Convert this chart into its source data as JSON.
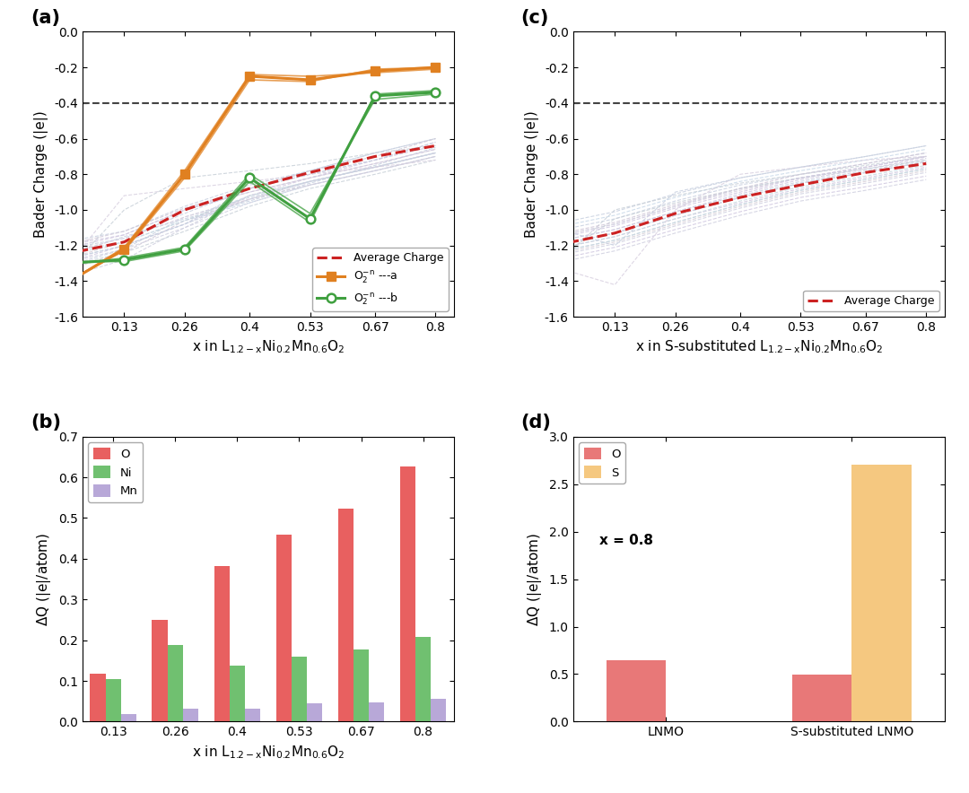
{
  "x_ticks": [
    0.13,
    0.26,
    0.4,
    0.53,
    0.67,
    0.8
  ],
  "x_full": [
    0.0,
    0.13,
    0.26,
    0.4,
    0.53,
    0.67,
    0.8
  ],
  "panel_a": {
    "avg_charge": [
      -1.25,
      -1.18,
      -1.0,
      -0.88,
      -0.79,
      -0.7,
      -0.64
    ],
    "o2n_a": [
      -1.42,
      -1.22,
      -0.8,
      -0.25,
      -0.27,
      -0.22,
      -0.2
    ],
    "o2n_b": [
      -1.3,
      -1.28,
      -1.22,
      -0.82,
      -1.05,
      -0.36,
      -0.34
    ],
    "o2n_a_extra": [
      [
        -1.42,
        -1.21,
        -0.78,
        -0.24,
        -0.25,
        -0.23,
        -0.21
      ],
      [
        -1.41,
        -1.23,
        -0.82,
        -0.27,
        -0.28,
        -0.21,
        -0.2
      ]
    ],
    "o2n_b_extra": [
      [
        -1.31,
        -1.27,
        -1.21,
        -0.8,
        -1.02,
        -0.38,
        -0.35
      ],
      [
        -1.29,
        -1.29,
        -1.23,
        -0.84,
        -1.07,
        -0.35,
        -0.33
      ]
    ],
    "bg_lines": [
      {
        "y": [
          -1.26,
          -1.15,
          -1.05,
          -0.95,
          -0.85,
          -0.75,
          -0.65
        ],
        "color": "#C8D0E0"
      },
      {
        "y": [
          -1.3,
          -1.2,
          -1.08,
          -0.92,
          -0.82,
          -0.72,
          -0.62
        ],
        "color": "#D0C8E0"
      },
      {
        "y": [
          -1.22,
          -1.16,
          -1.02,
          -0.88,
          -0.78,
          -0.68,
          -0.6
        ],
        "color": "#C8D0E0"
      },
      {
        "y": [
          -1.28,
          -1.18,
          -1.0,
          -0.9,
          -0.82,
          -0.74,
          -0.66
        ],
        "color": "#D8D0D8"
      },
      {
        "y": [
          -1.32,
          -1.22,
          -1.04,
          -0.93,
          -0.84,
          -0.76,
          -0.68
        ],
        "color": "#C8D0E0"
      },
      {
        "y": [
          -1.2,
          -1.14,
          -1.0,
          -0.88,
          -0.8,
          -0.72,
          -0.64
        ],
        "color": "#D0C8E0"
      },
      {
        "y": [
          -1.24,
          -1.18,
          -1.06,
          -0.96,
          -0.86,
          -0.78,
          -0.7
        ],
        "color": "#C8D8E8"
      },
      {
        "y": [
          -1.38,
          -1.28,
          -1.1,
          -0.92,
          -0.84,
          -0.76,
          -0.68
        ],
        "color": "#D0D0E0"
      },
      {
        "y": [
          -1.18,
          -1.12,
          -0.98,
          -0.86,
          -0.78,
          -0.68,
          -0.6
        ],
        "color": "#C8D0E0"
      },
      {
        "y": [
          -1.34,
          -1.24,
          -1.06,
          -0.94,
          -0.86,
          -0.78,
          -0.7
        ],
        "color": "#D0C8D8"
      },
      {
        "y": [
          -1.36,
          -1.0,
          -0.82,
          -0.78,
          -0.74,
          -0.68,
          -0.64
        ],
        "color": "#C8D0D8"
      },
      {
        "y": [
          -1.24,
          -1.16,
          -1.04,
          -0.94,
          -0.84,
          -0.76,
          -0.68
        ],
        "color": "#D8D0E0"
      },
      {
        "y": [
          -1.28,
          -1.2,
          -1.08,
          -0.88,
          -0.8,
          -0.72,
          -0.62
        ],
        "color": "#C8D0E0"
      },
      {
        "y": [
          -1.22,
          -1.14,
          -1.0,
          -0.9,
          -0.82,
          -0.74,
          -0.66
        ],
        "color": "#D0C8E0"
      },
      {
        "y": [
          -1.26,
          -1.18,
          -1.06,
          -0.92,
          -0.84,
          -0.76,
          -0.68
        ],
        "color": "#C8D8E0"
      },
      {
        "y": [
          -1.3,
          -1.22,
          -1.1,
          -0.96,
          -0.86,
          -0.78,
          -0.7
        ],
        "color": "#D0D0E0"
      },
      {
        "y": [
          -1.32,
          -1.24,
          -1.12,
          -0.98,
          -0.88,
          -0.8,
          -0.72
        ],
        "color": "#C8D0D8"
      },
      {
        "y": [
          -1.2,
          -1.12,
          -0.99,
          -0.88,
          -0.78,
          -0.7,
          -0.6
        ],
        "color": "#D0C8D8"
      },
      {
        "y": [
          -1.28,
          -1.2,
          -1.08,
          -0.94,
          -0.84,
          -0.76,
          -0.68
        ],
        "color": "#C8D0E0"
      },
      {
        "y": [
          -1.34,
          -0.92,
          -0.88,
          -0.84,
          -0.8,
          -0.76,
          -0.72
        ],
        "color": "#D8D0E0"
      }
    ]
  },
  "panel_c": {
    "avg_charge": [
      -1.2,
      -1.13,
      -1.02,
      -0.93,
      -0.86,
      -0.79,
      -0.74
    ],
    "bg_lines": [
      {
        "y": [
          -1.15,
          -1.08,
          -0.98,
          -0.88,
          -0.82,
          -0.76,
          -0.7
        ],
        "color": "#C8D0E0"
      },
      {
        "y": [
          -1.22,
          -1.15,
          -1.05,
          -0.96,
          -0.88,
          -0.82,
          -0.76
        ],
        "color": "#D0C8E0"
      },
      {
        "y": [
          -1.18,
          -1.11,
          -1.01,
          -0.92,
          -0.84,
          -0.78,
          -0.72
        ],
        "color": "#C8D0E0"
      },
      {
        "y": [
          -1.25,
          -1.18,
          -1.08,
          -0.98,
          -0.9,
          -0.84,
          -0.78
        ],
        "color": "#D8D0D8"
      },
      {
        "y": [
          -1.12,
          -1.05,
          -0.95,
          -0.86,
          -0.8,
          -0.74,
          -0.68
        ],
        "color": "#C8D0E0"
      },
      {
        "y": [
          -1.28,
          -1.21,
          -1.11,
          -1.01,
          -0.93,
          -0.87,
          -0.81
        ],
        "color": "#D0C8E0"
      },
      {
        "y": [
          -1.1,
          -1.03,
          -0.93,
          -0.84,
          -0.78,
          -0.72,
          -0.66
        ],
        "color": "#C8D8E8"
      },
      {
        "y": [
          -1.3,
          -1.23,
          -1.13,
          -1.03,
          -0.95,
          -0.89,
          -0.83
        ],
        "color": "#D0D0E0"
      },
      {
        "y": [
          -1.08,
          -1.01,
          -0.91,
          -0.82,
          -0.76,
          -0.7,
          -0.64
        ],
        "color": "#C8D0E0"
      },
      {
        "y": [
          -1.2,
          -1.13,
          -1.03,
          -0.93,
          -0.85,
          -0.79,
          -0.73
        ],
        "color": "#D0C8D8"
      },
      {
        "y": [
          -1.32,
          -1.0,
          -0.92,
          -0.85,
          -0.8,
          -0.75,
          -0.7
        ],
        "color": "#C8D0D8"
      },
      {
        "y": [
          -1.15,
          -1.08,
          -0.98,
          -0.89,
          -0.82,
          -0.76,
          -0.7
        ],
        "color": "#D8D0E0"
      },
      {
        "y": [
          -1.24,
          -1.17,
          -1.07,
          -0.97,
          -0.89,
          -0.83,
          -0.77
        ],
        "color": "#C8D0E0"
      },
      {
        "y": [
          -1.18,
          -1.11,
          -1.01,
          -0.91,
          -0.83,
          -0.77,
          -0.71
        ],
        "color": "#D0C8E0"
      },
      {
        "y": [
          -1.22,
          -1.15,
          -1.05,
          -0.95,
          -0.87,
          -0.81,
          -0.75
        ],
        "color": "#C8D8E0"
      },
      {
        "y": [
          -1.26,
          -1.19,
          -1.09,
          -0.99,
          -0.91,
          -0.85,
          -0.79
        ],
        "color": "#D0D0E0"
      },
      {
        "y": [
          -1.28,
          -1.05,
          -0.96,
          -0.88,
          -0.82,
          -0.77,
          -0.72
        ],
        "color": "#C8D0D8"
      },
      {
        "y": [
          -1.14,
          -1.07,
          -0.97,
          -0.88,
          -0.8,
          -0.74,
          -0.68
        ],
        "color": "#D0C8D8"
      },
      {
        "y": [
          -1.2,
          -1.13,
          -1.03,
          -0.93,
          -0.85,
          -0.79,
          -0.73
        ],
        "color": "#C8D0E0"
      },
      {
        "y": [
          -1.32,
          -1.42,
          -1.0,
          -0.8,
          -0.76,
          -0.72,
          -0.7
        ],
        "color": "#D8D0E0"
      },
      {
        "y": [
          -1.1,
          -1.2,
          -0.9,
          -0.82,
          -0.76,
          -0.7,
          -0.64
        ],
        "color": "#C8D0E0"
      },
      {
        "y": [
          -1.16,
          -1.09,
          -0.99,
          -0.9,
          -0.82,
          -0.76,
          -0.7
        ],
        "color": "#D0C8E0"
      },
      {
        "y": [
          -1.24,
          -1.17,
          -1.07,
          -0.97,
          -0.89,
          -0.83,
          -0.77
        ],
        "color": "#C8D8E0"
      },
      {
        "y": [
          -1.2,
          -1.13,
          -1.03,
          -0.93,
          -0.85,
          -0.79,
          -0.73
        ],
        "color": "#D0D0E0"
      }
    ]
  },
  "panel_b": {
    "categories": [
      "0.13",
      "0.26",
      "0.4",
      "0.53",
      "0.67",
      "0.8"
    ],
    "O": [
      0.117,
      0.249,
      0.382,
      0.46,
      0.523,
      0.627
    ],
    "Ni": [
      0.104,
      0.189,
      0.137,
      0.16,
      0.177,
      0.208
    ],
    "Mn": [
      0.018,
      0.031,
      0.031,
      0.046,
      0.047,
      0.055
    ],
    "colors": {
      "O": "#E86060",
      "Ni": "#70C070",
      "Mn": "#B8A8D8"
    }
  },
  "panel_d": {
    "categories": [
      "LNMO",
      "S-substituted LNMO"
    ],
    "O": [
      0.65,
      0.495
    ],
    "S": [
      0.0,
      2.7
    ],
    "colors": {
      "O": "#E87878",
      "S": "#F5C880"
    }
  },
  "colors": {
    "avg_charge": "#CC2222",
    "o2n_a": "#E08020",
    "o2n_b": "#40A040",
    "dashed_hline": "#444444"
  }
}
